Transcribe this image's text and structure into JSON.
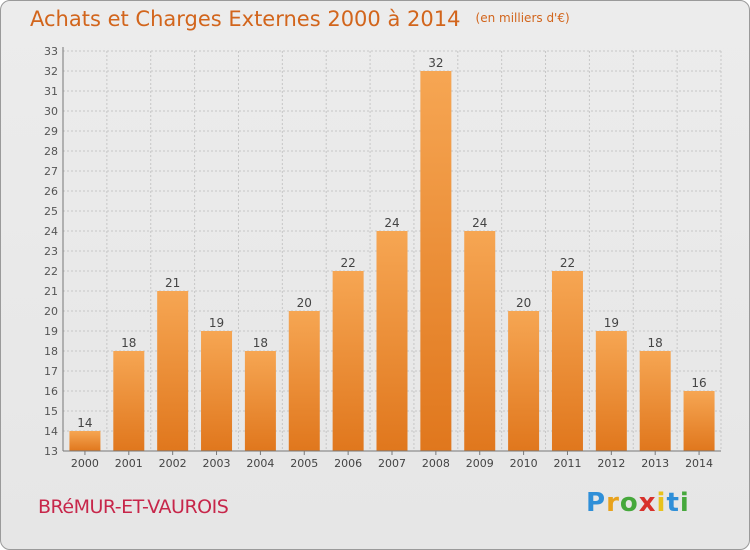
{
  "header": {
    "title": "Achats et Charges Externes 2000 à 2014",
    "unit": "(en milliers d'€)"
  },
  "footer": {
    "town": "BRéMUR-ET-VAUROIS",
    "logo_letters": [
      "P",
      "r",
      "o",
      "x",
      "i",
      "t",
      "i"
    ],
    "logo_colors": [
      "#2f8fd8",
      "#e8a21c",
      "#46a83c",
      "#d8312b",
      "#e8c21c",
      "#2f8fd8",
      "#46a83c"
    ]
  },
  "chart_data": {
    "type": "bar",
    "categories": [
      "2000",
      "2001",
      "2002",
      "2003",
      "2004",
      "2005",
      "2006",
      "2007",
      "2008",
      "2009",
      "2010",
      "2011",
      "2012",
      "2013",
      "2014"
    ],
    "values": [
      14,
      18,
      21,
      19,
      18,
      20,
      22,
      24,
      32,
      24,
      20,
      22,
      19,
      18,
      16
    ],
    "data_labels": [
      "14",
      "18",
      "21",
      "19",
      "18",
      "20",
      "22",
      "24",
      "32",
      "24",
      "20",
      "22",
      "19",
      "18",
      "16"
    ],
    "ylim": [
      13,
      33
    ],
    "yticks": [
      "13",
      "14",
      "15",
      "16",
      "17",
      "18",
      "19",
      "20",
      "21",
      "22",
      "23",
      "24",
      "25",
      "26",
      "27",
      "28",
      "29",
      "30",
      "31",
      "32",
      "33"
    ],
    "grid": true,
    "bar_color": "#f0923a"
  }
}
